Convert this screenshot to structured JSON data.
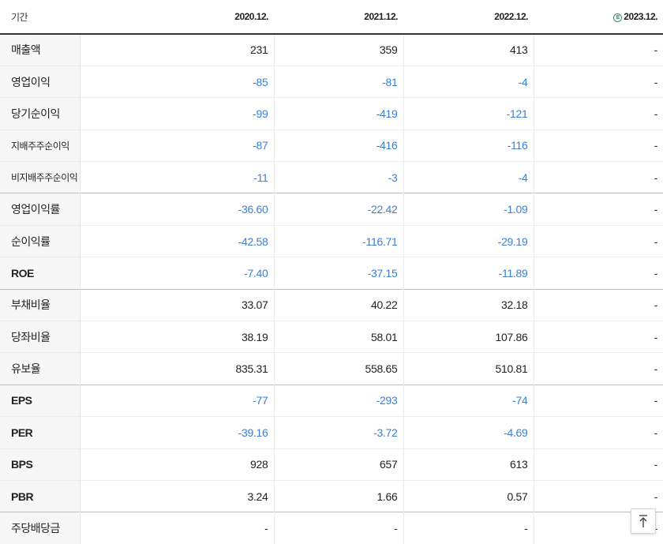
{
  "table": {
    "header": {
      "label": "기간",
      "periods": [
        "2020.12.",
        "2021.12.",
        "2022.12.",
        "2023.12."
      ],
      "estimate_badge": "E",
      "estimate_color": "#18a558"
    },
    "negative_color": "#3b7fd1",
    "rows": [
      {
        "label": "매출액",
        "values": [
          "231",
          "359",
          "413",
          "-"
        ]
      },
      {
        "label": "영업이익",
        "values": [
          "-85",
          "-81",
          "-4",
          "-"
        ]
      },
      {
        "label": "당기순이익",
        "values": [
          "-99",
          "-419",
          "-121",
          "-"
        ]
      },
      {
        "label": "지배주주순이익",
        "values": [
          "-87",
          "-416",
          "-116",
          "-"
        ]
      },
      {
        "label": "비지배주주순이익",
        "values": [
          "-11",
          "-3",
          "-4",
          "-"
        ]
      },
      {
        "label": "영업이익률",
        "values": [
          "-36.60",
          "-22.42",
          "-1.09",
          "-"
        ]
      },
      {
        "label": "순이익률",
        "values": [
          "-42.58",
          "-116.71",
          "-29.19",
          "-"
        ]
      },
      {
        "label": "ROE",
        "values": [
          "-7.40",
          "-37.15",
          "-11.89",
          "-"
        ]
      },
      {
        "label": "부채비율",
        "values": [
          "33.07",
          "40.22",
          "32.18",
          "-"
        ]
      },
      {
        "label": "당좌비율",
        "values": [
          "38.19",
          "58.01",
          "107.86",
          "-"
        ]
      },
      {
        "label": "유보율",
        "values": [
          "835.31",
          "558.65",
          "510.81",
          "-"
        ]
      },
      {
        "label": "EPS",
        "values": [
          "-77",
          "-293",
          "-74",
          "-"
        ]
      },
      {
        "label": "PER",
        "values": [
          "-39.16",
          "-3.72",
          "-4.69",
          "-"
        ]
      },
      {
        "label": "BPS",
        "values": [
          "928",
          "657",
          "613",
          "-"
        ]
      },
      {
        "label": "PBR",
        "values": [
          "3.24",
          "1.66",
          "0.57",
          "-"
        ]
      },
      {
        "label": "주당배당금",
        "values": [
          "-",
          "-",
          "-",
          "-"
        ]
      }
    ]
  },
  "scroll_top_icon": "arrow-up-icon"
}
